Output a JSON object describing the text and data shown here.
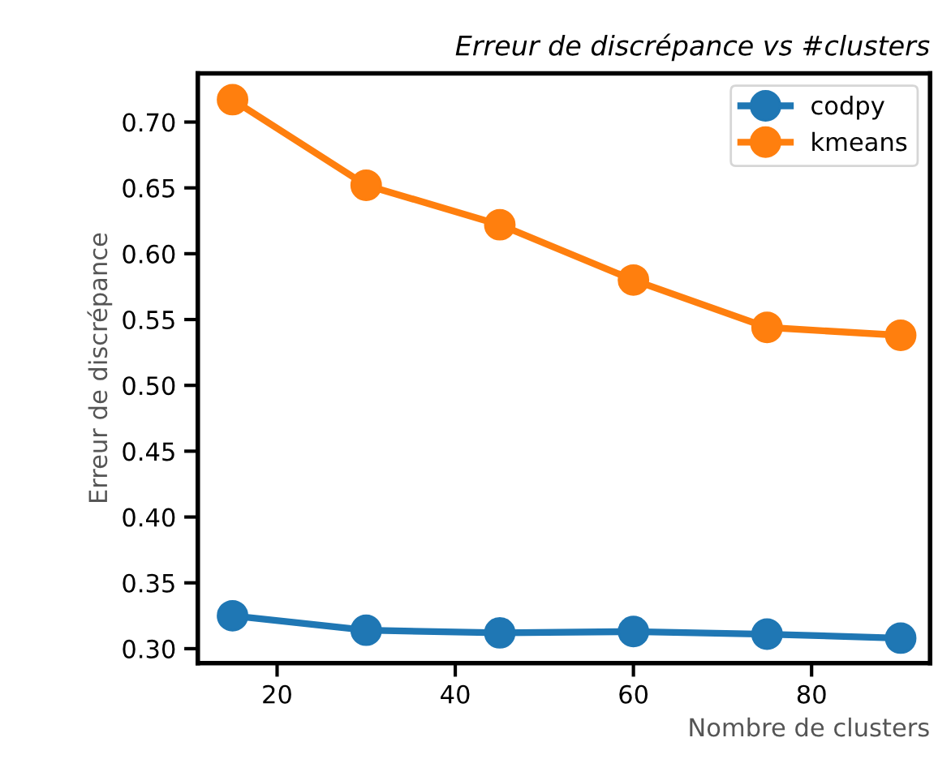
{
  "chart_data": {
    "type": "line",
    "title": "Erreur de discrépance vs #clusters",
    "xlabel": "Nombre de clusters",
    "ylabel": "Erreur de discrépance",
    "x": [
      15,
      30,
      45,
      60,
      75,
      90
    ],
    "series": [
      {
        "name": "codpy",
        "color": "#1f77b4",
        "values": [
          0.325,
          0.314,
          0.312,
          0.313,
          0.311,
          0.308
        ]
      },
      {
        "name": "kmeans",
        "color": "#ff7f0e",
        "values": [
          0.717,
          0.652,
          0.622,
          0.58,
          0.544,
          0.538
        ]
      }
    ],
    "xlim": [
      11.1,
      93.3
    ],
    "xticks": [
      20,
      40,
      60,
      80
    ],
    "ylim": [
      0.289,
      0.737
    ],
    "yticks": [
      {
        "value": 0.3,
        "label": "0.30"
      },
      {
        "value": 0.35,
        "label": "0.35"
      },
      {
        "value": 0.4,
        "label": "0.40"
      },
      {
        "value": 0.45,
        "label": "0.45"
      },
      {
        "value": 0.5,
        "label": "0.50"
      },
      {
        "value": 0.55,
        "label": "0.55"
      },
      {
        "value": 0.6,
        "label": "0.60"
      },
      {
        "value": 0.65,
        "label": "0.65"
      },
      {
        "value": 0.7,
        "label": "0.70"
      }
    ],
    "grid": false,
    "legend": "top right",
    "marker": "circle",
    "line_style": "solid"
  }
}
